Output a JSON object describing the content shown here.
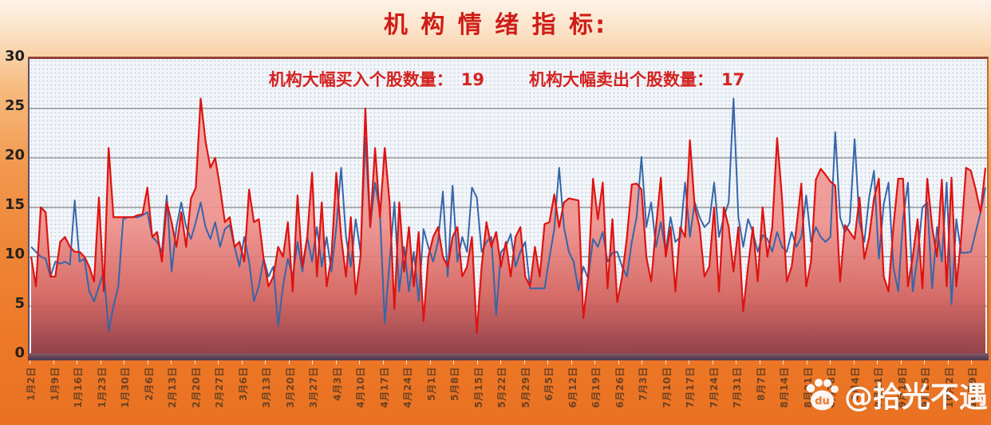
{
  "title": "机 构 情 绪 指 标:",
  "subtitle": {
    "buy_label": "机构大幅买入个股数量：",
    "buy_value": "19",
    "sell_label": "机构大幅卖出个股数量：",
    "sell_value": "17"
  },
  "watermark": {
    "text": "@拾光不遇",
    "icon": "baidu-paw-icon",
    "paw_text": "du"
  },
  "chart_data": {
    "type": "line",
    "title": "机构情绪指标",
    "ylim": [
      0,
      30
    ],
    "yticks": [
      0,
      5,
      10,
      15,
      20,
      25,
      30
    ],
    "grid": true,
    "legend_position": "none",
    "x_labels": [
      "1月2日",
      "1月9日",
      "1月16日",
      "1月23日",
      "1月30日",
      "2月6日",
      "2月13日",
      "2月20日",
      "2月27日",
      "3月6日",
      "3月13日",
      "3月20日",
      "3月27日",
      "4月3日",
      "4月10日",
      "4月17日",
      "4月24日",
      "5月1日",
      "5月8日",
      "5月15日",
      "5月22日",
      "5月29日",
      "6月5日",
      "6月12日",
      "6月19日",
      "6月26日",
      "7月3日",
      "7月10日",
      "7月17日",
      "7月24日",
      "7月31日",
      "8月7日",
      "8月14日",
      "8月21日",
      "8月28日",
      "9月4日",
      "9月11日",
      "9月18日",
      "9月25日",
      "10月2日",
      "10月9日"
    ],
    "colors": {
      "buy_line": "#de1310",
      "sell_line": "#3566a9",
      "area_top": "#f5a8a2",
      "area_mid": "#ef8f8a",
      "area_bottom": "#8e3a44",
      "gridline": "#6a6a6a",
      "plot_bg": "#f2f5f9",
      "frame_orange": "#ee7f2f",
      "title_red": "#ce1d17"
    },
    "series": [
      {
        "name": "机构大幅买入个股数量",
        "color": "#de1310",
        "fill": true,
        "final_value": 19,
        "values": [
          10,
          7,
          15,
          14.5,
          8,
          8,
          11.5,
          12,
          11,
          10.5,
          10.5,
          10,
          9,
          7.5,
          16,
          6.5,
          21,
          14,
          14,
          14,
          14,
          14,
          14.2,
          14.3,
          17,
          12,
          12.5,
          9.5,
          15.5,
          13.5,
          11,
          14.5,
          11,
          15.9,
          17,
          26,
          21.7,
          19,
          20,
          17,
          13.5,
          14,
          11,
          11.5,
          9.5,
          16.8,
          13.5,
          13.8,
          9.8,
          7,
          8,
          11,
          10,
          13.5,
          6.5,
          16.2,
          9,
          12,
          18.5,
          8,
          15.5,
          7,
          10,
          18.5,
          12,
          8,
          14,
          6.2,
          10,
          25,
          13,
          21,
          14,
          21,
          15.5,
          4.7,
          15.5,
          8.5,
          13,
          7,
          12.5,
          3.5,
          10,
          12,
          13,
          10,
          9,
          12,
          13,
          8,
          9,
          12,
          2.3,
          9,
          13.5,
          11,
          12.5,
          9,
          11.5,
          8,
          12,
          13,
          8,
          7,
          11,
          8,
          13.3,
          13.5,
          16.3,
          13,
          15.5,
          15.9,
          15.8,
          15.7,
          3.8,
          8,
          17.9,
          13.8,
          17.5,
          6.8,
          13.8,
          5.4,
          8,
          12,
          17.3,
          17.4,
          16.8,
          10,
          7.5,
          13,
          18,
          10,
          13,
          6.5,
          13,
          12,
          21.8,
          15,
          13,
          8,
          9,
          15,
          6.5,
          15,
          13,
          8.5,
          13,
          4.5,
          9,
          13,
          7.5,
          15,
          10,
          13,
          22,
          16,
          7.5,
          9,
          13,
          17.4,
          7,
          9.5,
          17.8,
          18.9,
          18.3,
          17.6,
          17.2,
          7.5,
          13.2,
          12.5,
          11.8,
          16,
          9.8,
          12,
          15.9,
          17.9,
          8,
          6.5,
          13,
          17.9,
          17.9,
          7,
          10,
          13.8,
          6.8,
          17.9,
          13,
          10,
          17.8,
          7,
          18,
          7,
          12,
          19,
          18.7,
          16.8,
          14.5,
          19
        ]
      },
      {
        "name": "机构大幅卖出个股数量",
        "color": "#3566a9",
        "fill": false,
        "final_value": 17,
        "values": [
          11,
          10.5,
          10,
          9.8,
          8,
          9.5,
          9.3,
          9.5,
          9.2,
          15.7,
          9.5,
          9.8,
          6.5,
          5.5,
          7,
          8.5,
          2.5,
          5,
          7,
          13.8,
          14,
          14,
          14,
          14.2,
          14.5,
          12,
          11.5,
          10.5,
          16.2,
          8.5,
          13,
          15.5,
          13,
          11.8,
          13.5,
          15.5,
          13,
          11.8,
          13.5,
          11,
          12.8,
          13.2,
          11,
          9,
          12,
          9.5,
          5.5,
          7,
          9.8,
          8,
          9,
          3,
          7,
          9.8,
          8,
          11.5,
          8.5,
          12,
          9.5,
          13,
          9,
          12,
          8.5,
          13,
          19,
          12,
          9,
          13.8,
          10.5,
          22,
          13,
          17.5,
          14.5,
          3.3,
          9.5,
          15.5,
          6.5,
          11,
          6.5,
          10.5,
          5.5,
          12.8,
          11,
          9.5,
          11.5,
          16.6,
          8,
          17.2,
          9.5,
          12,
          10.5,
          17,
          16,
          10.5,
          11.5,
          12,
          4.1,
          10.5,
          11,
          12.3,
          9,
          10.5,
          11.5,
          6.8,
          6.8,
          6.8,
          6.8,
          9.9,
          12.8,
          19,
          13,
          10.5,
          9.5,
          6.6,
          9,
          7.8,
          11.8,
          11,
          12.5,
          9.5,
          10.4,
          10.5,
          9,
          8,
          11.5,
          14,
          20.1,
          13,
          15.5,
          11,
          13.5,
          10.5,
          14,
          11.5,
          12,
          17.5,
          12,
          15.5,
          14,
          13,
          13.5,
          17.5,
          12,
          14,
          15.5,
          26,
          14,
          11,
          13.8,
          12.5,
          10.5,
          12.2,
          11.8,
          10.5,
          12.5,
          11,
          10.5,
          12.5,
          11,
          12,
          16.2,
          11.5,
          13,
          12,
          11.5,
          12,
          22.6,
          14,
          12.5,
          13.5,
          21.9,
          13.5,
          11.5,
          16,
          18.7,
          9.8,
          15.3,
          17.5,
          9,
          6.5,
          13.8,
          17.5,
          6.5,
          10,
          15,
          15.5,
          6.8,
          13,
          9.5,
          17.5,
          5.2,
          13.8,
          10.4,
          10.4,
          10.5,
          12.5,
          14.5,
          17
        ]
      }
    ]
  }
}
